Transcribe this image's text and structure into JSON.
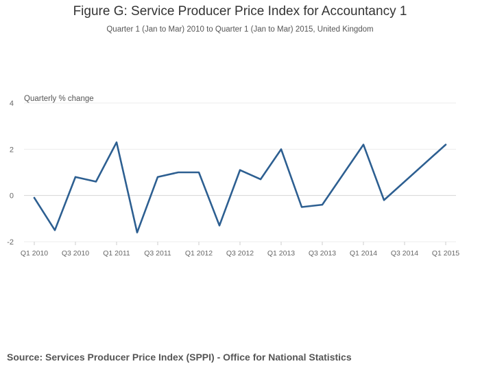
{
  "chart_data": {
    "type": "line",
    "title": "Figure G: Service Producer Price Index for Accountancy 1",
    "subtitle": "Quarter 1 (Jan to Mar) 2010 to Quarter 1 (Jan to Mar) 2015, United Kingdom",
    "ylabel": "Quarterly % change",
    "xlabel": "",
    "ylim": [
      -2,
      4
    ],
    "yticks": [
      -2,
      0,
      2,
      4
    ],
    "grid": true,
    "x": [
      "Q1 2010",
      "Q2 2010",
      "Q3 2010",
      "Q4 2010",
      "Q1 2011",
      "Q2 2011",
      "Q3 2011",
      "Q4 2011",
      "Q1 2012",
      "Q2 2012",
      "Q3 2012",
      "Q4 2012",
      "Q1 2013",
      "Q2 2013",
      "Q3 2013",
      "Q4 2013",
      "Q1 2014",
      "Q2 2014",
      "Q3 2014",
      "Q4 2014",
      "Q1 2015"
    ],
    "xtick_labels": [
      "Q1 2010",
      "Q3 2010",
      "Q1 2011",
      "Q3 2011",
      "Q1 2012",
      "Q3 2012",
      "Q1 2013",
      "Q3 2013",
      "Q1 2014",
      "Q3 2014",
      "Q1 2015"
    ],
    "series": [
      {
        "values": [
          -0.1,
          -1.5,
          0.8,
          0.6,
          2.3,
          -1.6,
          0.8,
          1.0,
          1.0,
          -1.3,
          1.1,
          0.7,
          2.0,
          -0.5,
          -0.4,
          null,
          2.2,
          -0.2,
          null,
          null,
          2.2
        ],
        "color": "#2d5f91"
      }
    ]
  },
  "source": "Source: Services Producer Price Index (SPPI) - Office for National Statistics"
}
